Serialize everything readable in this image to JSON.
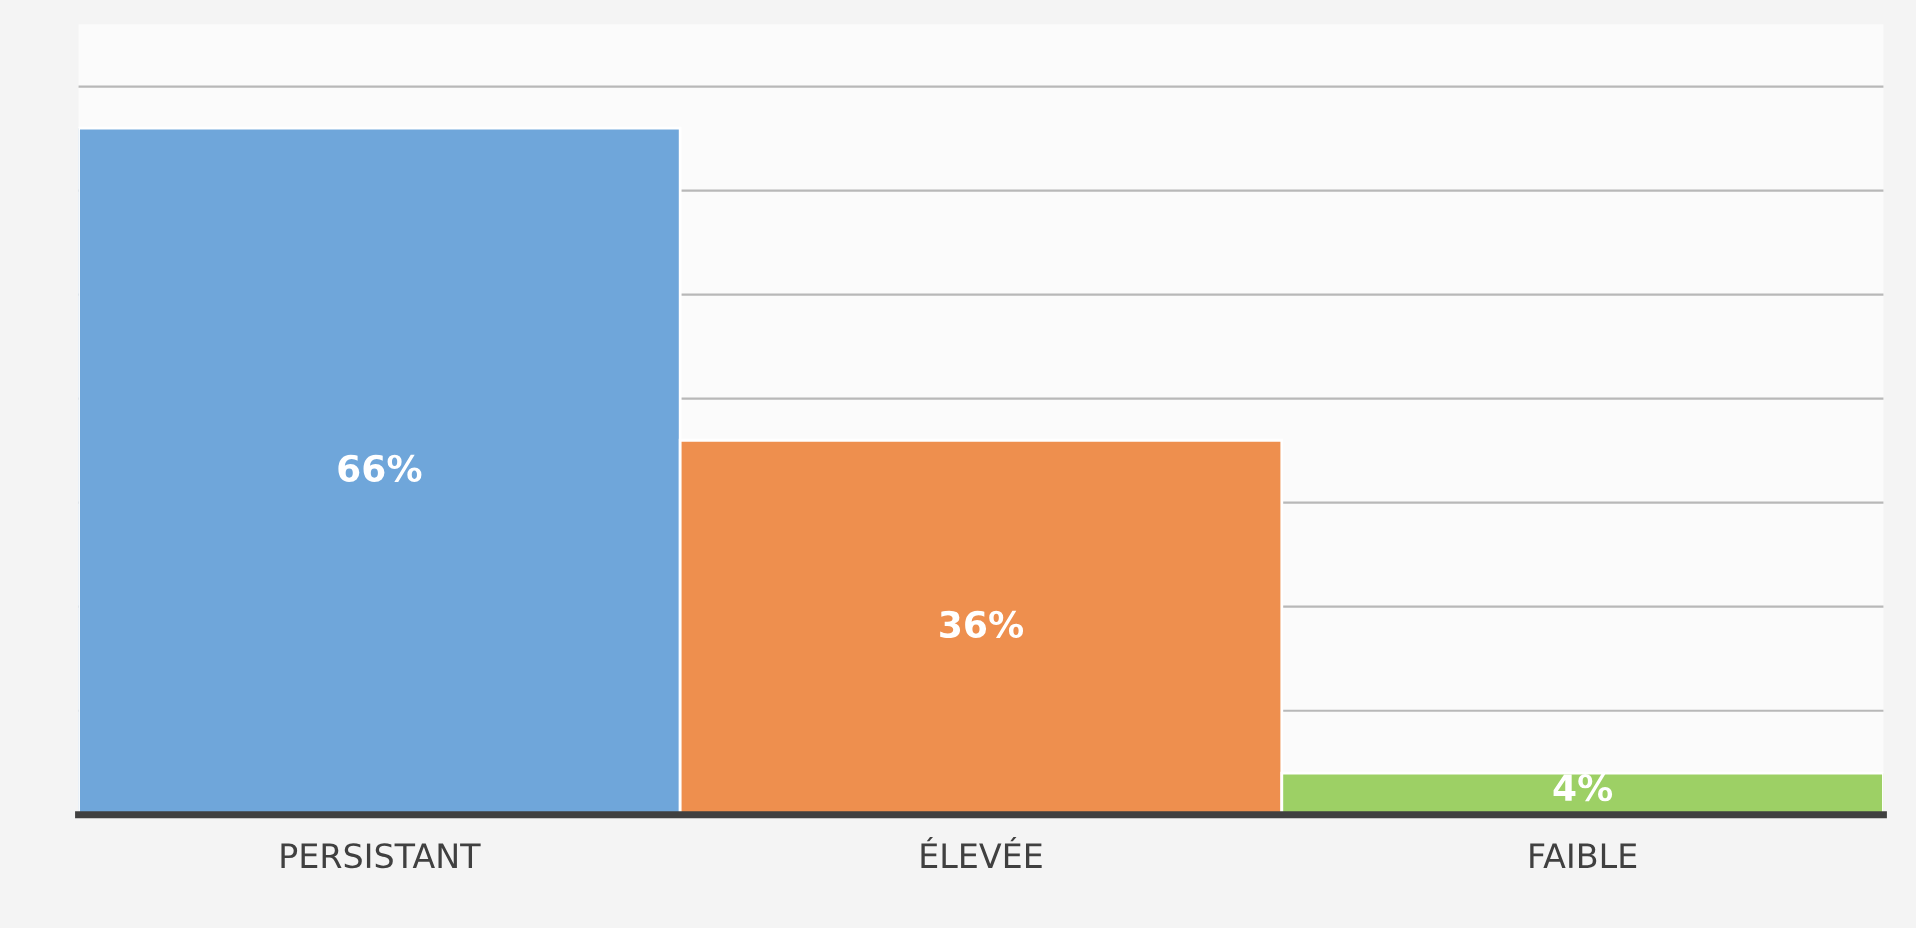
{
  "chart_data": {
    "type": "bar",
    "categories": [
      "PERSISTANT",
      "ÉLEVÉE",
      "FAIBLE"
    ],
    "values": [
      66,
      36,
      4
    ],
    "value_labels": [
      "66%",
      "36%",
      "4%"
    ],
    "colors": [
      "#6fa6da",
      "#ee8f4e",
      "#9dd065"
    ],
    "relative": false,
    "ylim": [
      0,
      76
    ],
    "yticks": [
      {
        "value": 0,
        "label": null
      },
      {
        "value": 10,
        "label": null
      },
      {
        "value": 20,
        "label": null
      },
      {
        "value": 30,
        "label": null
      },
      {
        "value": 40,
        "label": null
      },
      {
        "value": 50,
        "label": null
      },
      {
        "value": 60,
        "label": null
      },
      {
        "value": 70,
        "label": null
      }
    ],
    "tick_labels": "x",
    "grid": "y",
    "legend": false
  }
}
